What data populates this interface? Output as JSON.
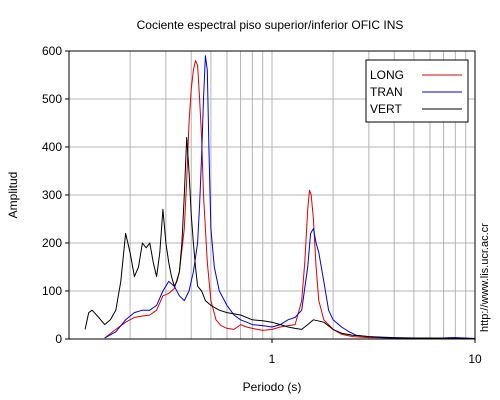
{
  "chart_data": {
    "type": "line",
    "title": "Cociente espectral piso superior/inferior  OFIC INS",
    "xlabel": "Periodo (s)",
    "ylabel": "Amplitud",
    "xscale": "log",
    "xlim": [
      0.1,
      10
    ],
    "ylim": [
      0,
      600
    ],
    "xticks": [
      1,
      10
    ],
    "xtick_labels": [
      "1",
      "10"
    ],
    "yticks": [
      0,
      100,
      200,
      300,
      400,
      500,
      600
    ],
    "ytick_labels": [
      "0",
      "100",
      "200",
      "300",
      "400",
      "500",
      "600"
    ],
    "grid": true,
    "legend_position": "top-right",
    "series": [
      {
        "name": "LONG",
        "color": "#dd0000",
        "x": [
          0.15,
          0.17,
          0.19,
          0.21,
          0.23,
          0.25,
          0.27,
          0.29,
          0.31,
          0.33,
          0.35,
          0.37,
          0.38,
          0.39,
          0.4,
          0.41,
          0.42,
          0.43,
          0.44,
          0.45,
          0.46,
          0.48,
          0.5,
          0.53,
          0.56,
          0.6,
          0.65,
          0.7,
          0.75,
          0.8,
          0.9,
          1.0,
          1.1,
          1.2,
          1.3,
          1.4,
          1.45,
          1.5,
          1.53,
          1.56,
          1.6,
          1.65,
          1.7,
          1.8,
          1.9,
          2.0,
          2.2,
          2.5,
          3.0,
          4,
          5,
          6,
          7,
          8,
          9,
          10
        ],
        "y": [
          2,
          20,
          35,
          45,
          48,
          50,
          60,
          90,
          95,
          105,
          140,
          230,
          330,
          450,
          520,
          560,
          580,
          570,
          500,
          420,
          300,
          160,
          80,
          40,
          28,
          22,
          20,
          30,
          25,
          22,
          18,
          20,
          25,
          28,
          30,
          80,
          160,
          270,
          310,
          300,
          250,
          150,
          80,
          40,
          30,
          20,
          10,
          5,
          3,
          2,
          2,
          1,
          2,
          3,
          1,
          1
        ]
      },
      {
        "name": "TRAN",
        "color": "#0000dd",
        "x": [
          0.15,
          0.17,
          0.19,
          0.21,
          0.23,
          0.25,
          0.27,
          0.29,
          0.31,
          0.33,
          0.35,
          0.37,
          0.39,
          0.41,
          0.43,
          0.44,
          0.45,
          0.46,
          0.47,
          0.48,
          0.49,
          0.5,
          0.52,
          0.55,
          0.6,
          0.65,
          0.7,
          0.75,
          0.8,
          0.9,
          1.0,
          1.1,
          1.2,
          1.3,
          1.4,
          1.5,
          1.55,
          1.6,
          1.65,
          1.7,
          1.8,
          1.9,
          2.0,
          2.2,
          2.4,
          2.6,
          3.0,
          3.5,
          4,
          5,
          6,
          7,
          8,
          9,
          10
        ],
        "y": [
          2,
          15,
          40,
          55,
          60,
          60,
          70,
          100,
          120,
          110,
          90,
          80,
          100,
          140,
          200,
          280,
          380,
          500,
          590,
          560,
          380,
          230,
          150,
          100,
          70,
          50,
          40,
          35,
          30,
          28,
          25,
          30,
          40,
          45,
          60,
          150,
          220,
          230,
          200,
          180,
          120,
          60,
          40,
          25,
          15,
          8,
          5,
          3,
          2,
          2,
          1,
          2,
          3,
          2,
          1
        ]
      },
      {
        "name": "VERT",
        "color": "#000000",
        "x": [
          0.12,
          0.125,
          0.13,
          0.14,
          0.15,
          0.16,
          0.17,
          0.18,
          0.19,
          0.2,
          0.21,
          0.22,
          0.23,
          0.24,
          0.25,
          0.26,
          0.27,
          0.28,
          0.29,
          0.3,
          0.31,
          0.32,
          0.33,
          0.34,
          0.35,
          0.36,
          0.37,
          0.38,
          0.39,
          0.4,
          0.41,
          0.42,
          0.43,
          0.45,
          0.47,
          0.5,
          0.55,
          0.6,
          0.7,
          0.8,
          0.9,
          1.0,
          1.1,
          1.2,
          1.3,
          1.4,
          1.5,
          1.6,
          1.8,
          2.0,
          2.2,
          2.5,
          3.0,
          4,
          5,
          6,
          8,
          10
        ],
        "y": [
          20,
          55,
          60,
          45,
          30,
          40,
          60,
          120,
          220,
          180,
          130,
          150,
          200,
          190,
          200,
          160,
          130,
          180,
          270,
          200,
          160,
          130,
          110,
          120,
          140,
          200,
          300,
          420,
          350,
          260,
          200,
          150,
          110,
          100,
          80,
          70,
          60,
          55,
          50,
          40,
          38,
          35,
          30,
          25,
          22,
          20,
          30,
          40,
          35,
          20,
          12,
          8,
          5,
          3,
          2,
          2,
          1,
          1
        ]
      }
    ]
  },
  "watermark": "http://www.lis.ucr.ac.cr"
}
